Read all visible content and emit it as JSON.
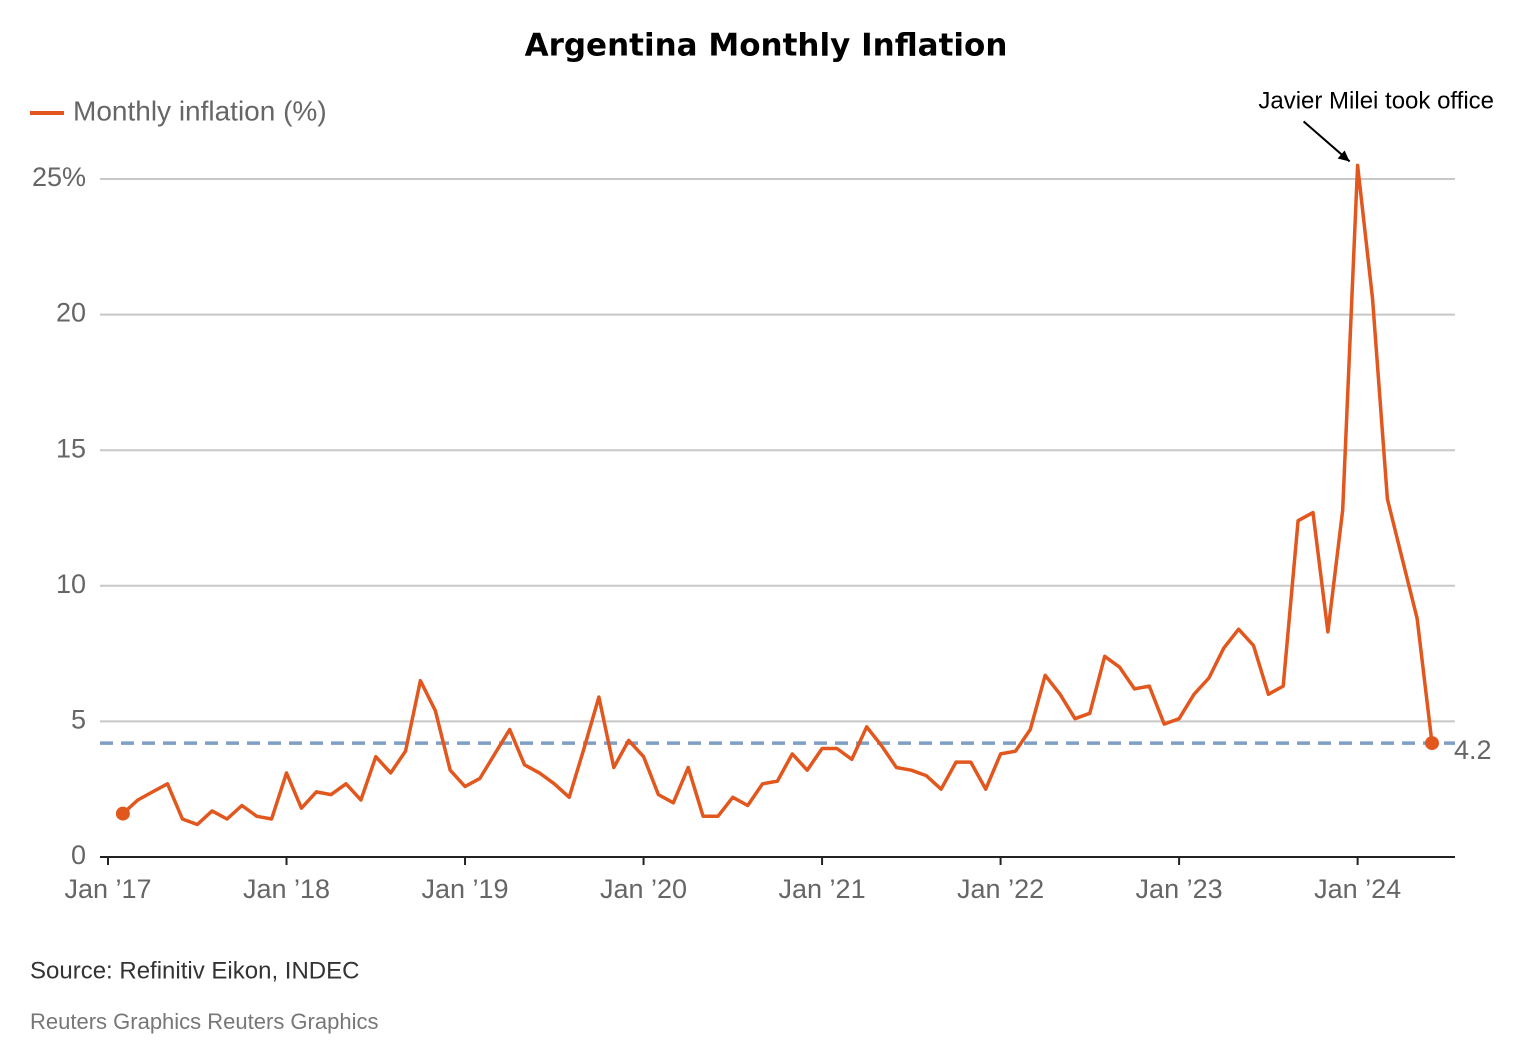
{
  "chart_data": {
    "type": "line",
    "title": "Argentina Monthly Inflation",
    "source": "Source: Refinitiv Eikon, INDEC",
    "credit": "Reuters Graphics Reuters Graphics",
    "annotation": "Javier Milei took office",
    "x": [
      "2017-02",
      "2017-03",
      "2017-04",
      "2017-05",
      "2017-06",
      "2017-07",
      "2017-08",
      "2017-09",
      "2017-10",
      "2017-11",
      "2017-12",
      "2018-01",
      "2018-02",
      "2018-03",
      "2018-04",
      "2018-05",
      "2018-06",
      "2018-07",
      "2018-08",
      "2018-09",
      "2018-10",
      "2018-11",
      "2018-12",
      "2019-01",
      "2019-02",
      "2019-03",
      "2019-04",
      "2019-05",
      "2019-06",
      "2019-07",
      "2019-08",
      "2019-09",
      "2019-10",
      "2019-11",
      "2019-12",
      "2020-01",
      "2020-02",
      "2020-03",
      "2020-04",
      "2020-05",
      "2020-06",
      "2020-07",
      "2020-08",
      "2020-09",
      "2020-10",
      "2020-11",
      "2020-12",
      "2021-01",
      "2021-02",
      "2021-03",
      "2021-04",
      "2021-05",
      "2021-06",
      "2021-07",
      "2021-08",
      "2021-09",
      "2021-10",
      "2021-11",
      "2021-12",
      "2022-01",
      "2022-02",
      "2022-03",
      "2022-04",
      "2022-05",
      "2022-06",
      "2022-07",
      "2022-08",
      "2022-09",
      "2022-10",
      "2022-11",
      "2022-12",
      "2023-01",
      "2023-02",
      "2023-03",
      "2023-04",
      "2023-05",
      "2023-06",
      "2023-07",
      "2023-08",
      "2023-09",
      "2023-10",
      "2023-11",
      "2023-12",
      "2024-01",
      "2024-02",
      "2024-03",
      "2024-04",
      "2024-05",
      "2024-06"
    ],
    "series": [
      {
        "name": "Monthly inflation (%)",
        "color": "#e2571e",
        "values": [
          1.6,
          2.1,
          2.4,
          2.7,
          1.4,
          1.2,
          1.7,
          1.4,
          1.9,
          1.5,
          1.4,
          3.1,
          1.8,
          2.4,
          2.3,
          2.7,
          2.1,
          3.7,
          3.1,
          3.9,
          6.5,
          5.4,
          3.2,
          2.6,
          2.9,
          3.8,
          4.7,
          3.4,
          3.1,
          2.7,
          2.2,
          4.0,
          5.9,
          3.3,
          4.3,
          3.7,
          2.3,
          2.0,
          3.3,
          1.5,
          1.5,
          2.2,
          1.9,
          2.7,
          2.8,
          3.8,
          3.2,
          4.0,
          4.0,
          3.6,
          4.8,
          4.1,
          3.3,
          3.2,
          3.0,
          2.5,
          3.5,
          3.5,
          2.5,
          3.8,
          3.9,
          4.7,
          6.7,
          6.0,
          5.1,
          5.3,
          7.4,
          7.0,
          6.2,
          6.3,
          4.9,
          5.1,
          6.0,
          6.6,
          7.7,
          8.4,
          7.8,
          6.0,
          6.3,
          12.4,
          12.7,
          8.3,
          12.8,
          25.5,
          20.6,
          13.2,
          11.0,
          8.8,
          4.2
        ]
      }
    ],
    "reference_line": {
      "value": 4.2,
      "color": "#7f9fc4"
    },
    "xlim": [
      "2017-01",
      "2024-06"
    ],
    "xticks": [
      {
        "value": "2017-01",
        "label": "Jan ’17"
      },
      {
        "value": "2018-01",
        "label": "Jan ’18"
      },
      {
        "value": "2019-01",
        "label": "Jan ’19"
      },
      {
        "value": "2020-01",
        "label": "Jan ’20"
      },
      {
        "value": "2021-01",
        "label": "Jan ’21"
      },
      {
        "value": "2022-01",
        "label": "Jan ’22"
      },
      {
        "value": "2023-01",
        "label": "Jan ’23"
      },
      {
        "value": "2024-01",
        "label": "Jan ’24"
      }
    ],
    "ylim": [
      0,
      25
    ],
    "yticks": [
      0,
      5,
      10,
      15,
      20,
      {
        "value": 25,
        "label": "25%"
      }
    ],
    "grid": true
  }
}
